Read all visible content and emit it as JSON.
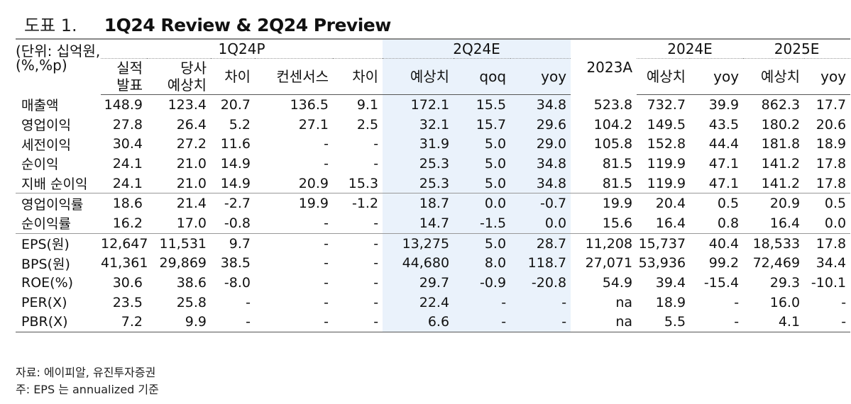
{
  "figure": {
    "label": "도표 1.",
    "title": "1Q24 Review & 2Q24 Preview"
  },
  "unit_note": [
    "(단위: 십억원,",
    "(%,%p)"
  ],
  "groups": {
    "g1": "1Q24P",
    "g2": "2Q24E",
    "g3": "2024E",
    "g4": "2025E"
  },
  "columns": [
    [
      "실적",
      "발표"
    ],
    [
      "당사",
      "예상치"
    ],
    [
      "차이"
    ],
    [
      "컨센서스"
    ],
    [
      "차이"
    ],
    [
      "예상치"
    ],
    [
      "qoq"
    ],
    [
      "yoy"
    ],
    [
      "2023A"
    ],
    [
      "예상치"
    ],
    [
      "yoy"
    ],
    [
      "예상치"
    ],
    [
      "yoy"
    ]
  ],
  "rows": [
    {
      "label": "매출액",
      "values": [
        "148.9",
        "123.4",
        "20.7",
        "136.5",
        "9.1",
        "172.1",
        "15.5",
        "34.8",
        "523.8",
        "732.7",
        "39.9",
        "862.3",
        "17.7"
      ]
    },
    {
      "label": "영업이익",
      "values": [
        "27.8",
        "26.4",
        "5.2",
        "27.1",
        "2.5",
        "32.1",
        "15.7",
        "29.6",
        "104.2",
        "149.5",
        "43.5",
        "180.2",
        "20.6"
      ]
    },
    {
      "label": "세전이익",
      "values": [
        "30.4",
        "27.2",
        "11.6",
        "-",
        "-",
        "31.9",
        "5.0",
        "29.0",
        "105.8",
        "152.8",
        "44.4",
        "181.8",
        "18.9"
      ]
    },
    {
      "label": "순이익",
      "values": [
        "24.1",
        "21.0",
        "14.9",
        "-",
        "-",
        "25.3",
        "5.0",
        "34.8",
        "81.5",
        "119.9",
        "47.1",
        "141.2",
        "17.8"
      ]
    },
    {
      "label": "지배 순이익",
      "values": [
        "24.1",
        "21.0",
        "14.9",
        "20.9",
        "15.3",
        "25.3",
        "5.0",
        "34.8",
        "81.5",
        "119.9",
        "47.1",
        "141.2",
        "17.8"
      ]
    },
    {
      "label": "영업이익률",
      "values": [
        "18.6",
        "21.4",
        "-2.7",
        "19.9",
        "-1.2",
        "18.7",
        "0.0",
        "-0.7",
        "19.9",
        "20.4",
        "0.5",
        "20.9",
        "0.5"
      ]
    },
    {
      "label": "순이익률",
      "values": [
        "16.2",
        "17.0",
        "-0.8",
        "-",
        "-",
        "14.7",
        "-1.5",
        "0.0",
        "15.6",
        "16.4",
        "0.8",
        "16.4",
        "0.0"
      ]
    },
    {
      "label": "EPS(원)",
      "values": [
        "12,647",
        "11,531",
        "9.7",
        "-",
        "-",
        "13,275",
        "5.0",
        "28.7",
        "11,208",
        "15,737",
        "40.4",
        "18,533",
        "17.8"
      ]
    },
    {
      "label": "BPS(원)",
      "values": [
        "41,361",
        "29,869",
        "38.5",
        "-",
        "-",
        "44,680",
        "8.0",
        "118.7",
        "27,071",
        "53,936",
        "99.2",
        "72,469",
        "34.4"
      ]
    },
    {
      "label": "ROE(%)",
      "values": [
        "30.6",
        "38.6",
        "-8.0",
        "-",
        "-",
        "29.7",
        "-0.9",
        "-20.8",
        "54.9",
        "39.4",
        "-15.4",
        "29.3",
        "-10.1"
      ]
    },
    {
      "label": "PER(X)",
      "values": [
        "23.5",
        "25.8",
        "-",
        "-",
        "-",
        "22.4",
        "-",
        "-",
        "na",
        "18.9",
        "-",
        "16.0",
        "-"
      ]
    },
    {
      "label": "PBR(X)",
      "values": [
        "7.2",
        "9.9",
        "-",
        "-",
        "-",
        "6.6",
        "-",
        "-",
        "na",
        "5.5",
        "-",
        "4.1",
        "-"
      ]
    }
  ],
  "footnotes": [
    "자료: 에이피알, 유진투자증권",
    "주: EPS 는 annualized 기준"
  ]
}
